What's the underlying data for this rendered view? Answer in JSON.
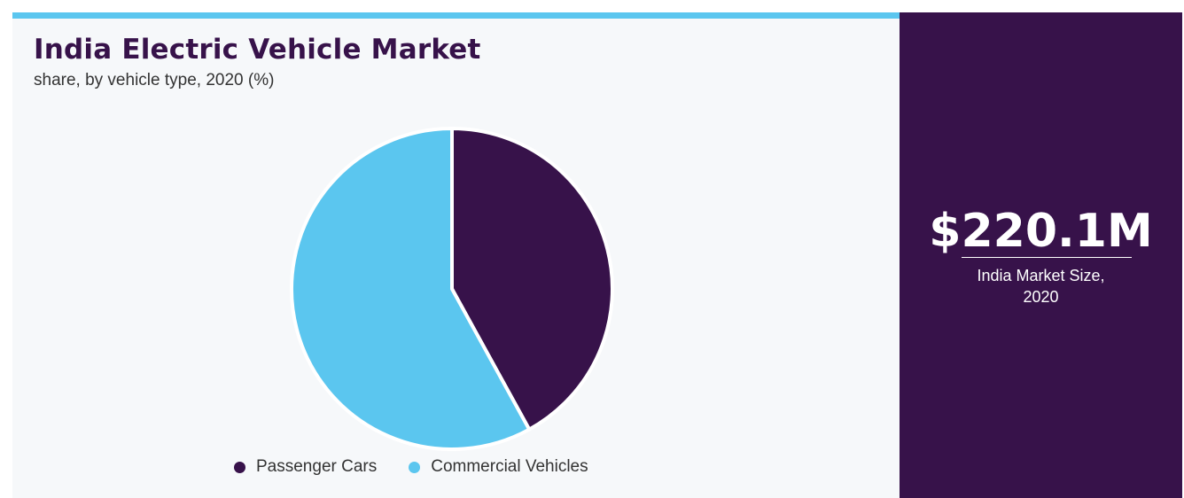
{
  "colors": {
    "accent_bar": "#5bc6ef",
    "brand_dark": "#37124a",
    "card_background": "#f6f8fa"
  },
  "header": {
    "title": "India Electric Vehicle Market",
    "subtitle": "share, by vehicle type, 2020 (%)"
  },
  "chart_data": {
    "type": "pie",
    "title": "India Electric Vehicle Market",
    "subtitle": "share, by vehicle type, 2020 (%)",
    "series": [
      {
        "name": "Passenger Cars",
        "value": 42,
        "color": "#37124a"
      },
      {
        "name": "Commercial Vehicles",
        "value": 58,
        "color": "#5bc6ef"
      }
    ],
    "start_angle_deg": 0,
    "direction": "clockwise",
    "legend_position": "bottom"
  },
  "legend": {
    "items": [
      {
        "label": "Passenger Cars",
        "color": "#37124a"
      },
      {
        "label": "Commercial Vehicles",
        "color": "#5bc6ef"
      }
    ]
  },
  "highlight": {
    "value": "$220.1M",
    "caption_line1": "India Market Size,",
    "caption_line2": "2020"
  }
}
